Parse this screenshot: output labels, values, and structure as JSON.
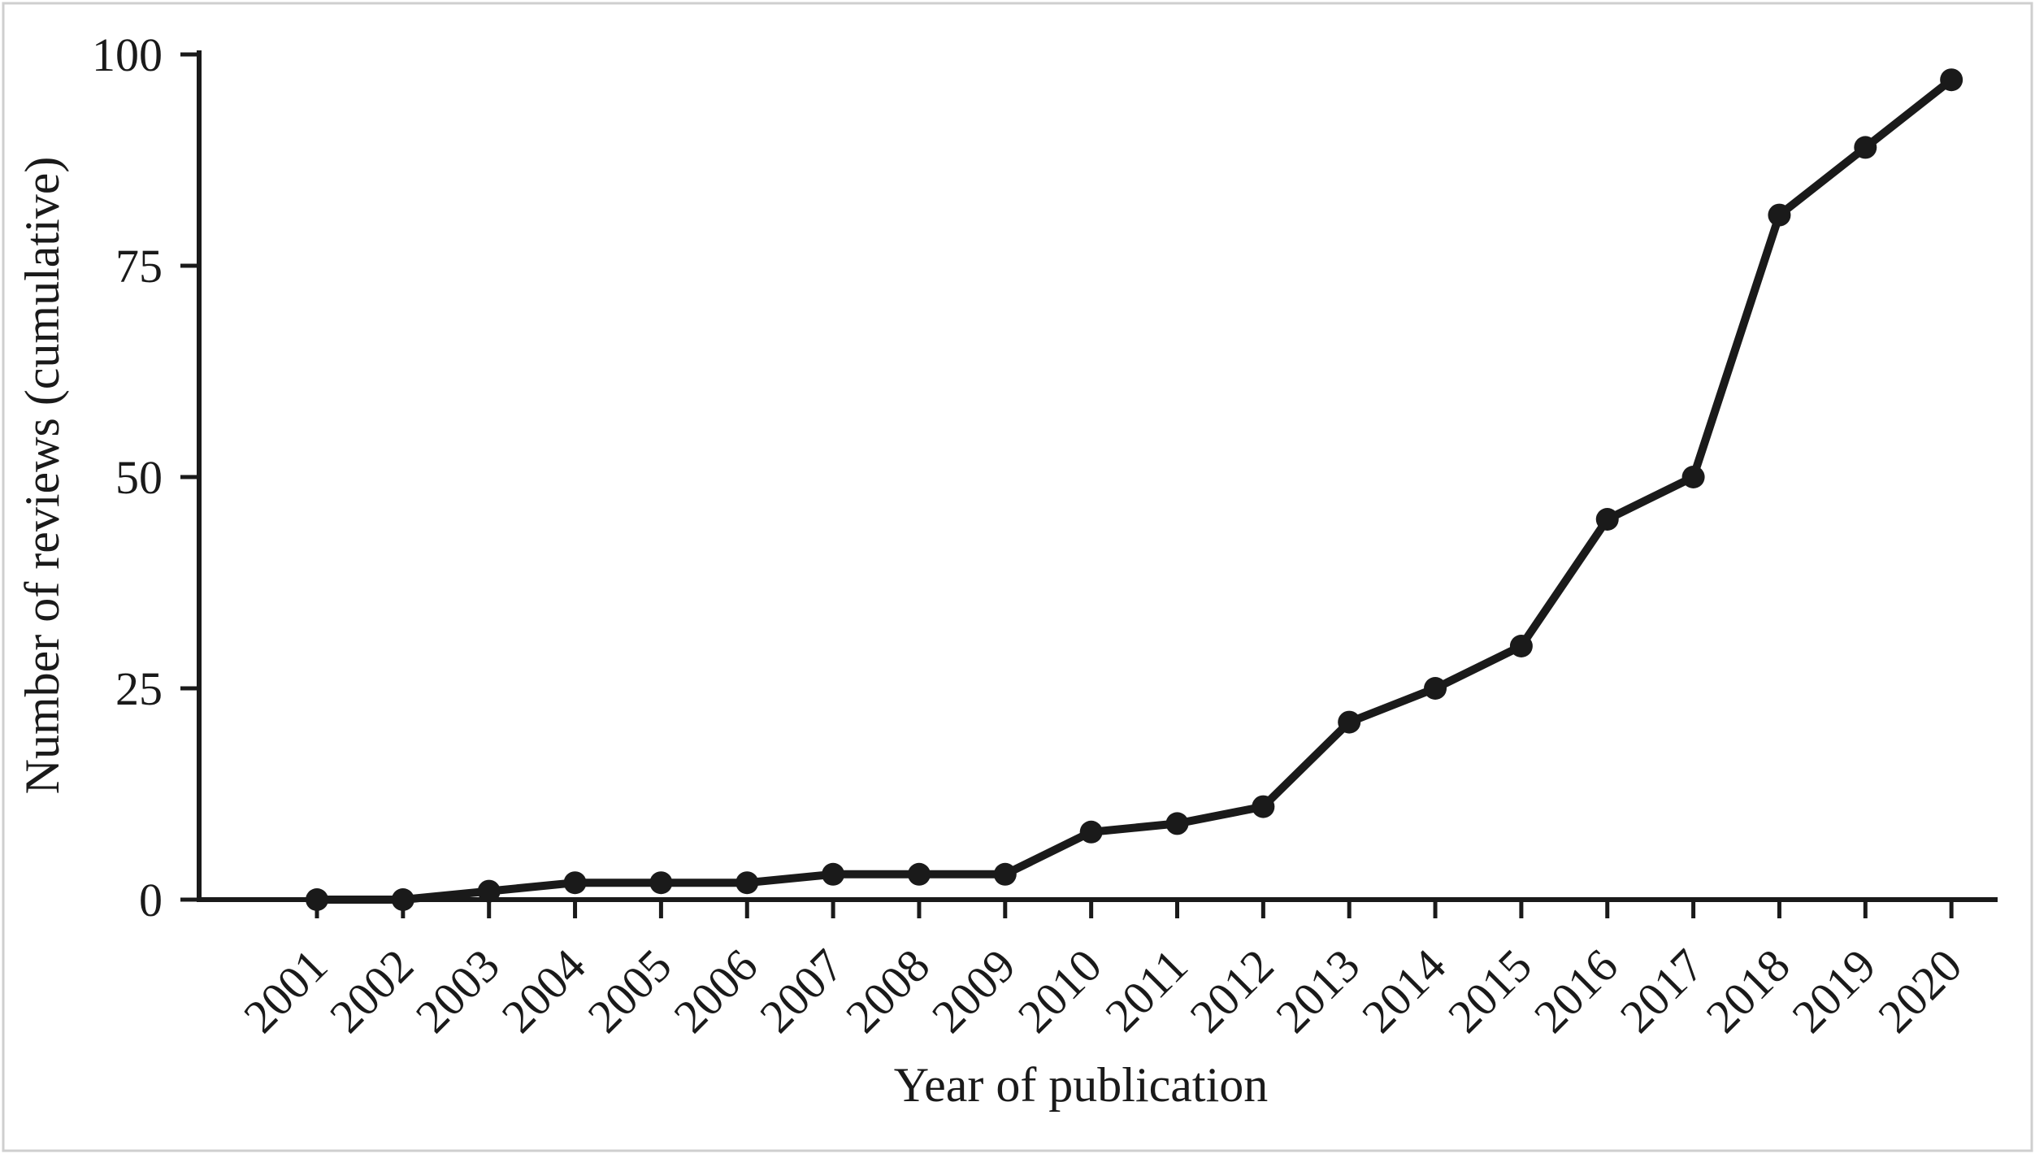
{
  "figure": {
    "background": "#ffffff",
    "frame_border_color": "#cfcfcf"
  },
  "chart_data": {
    "type": "line",
    "title": "",
    "xlabel": "Year of publication",
    "ylabel": "Number of reviews (cumulative)",
    "x": [
      "2001",
      "2002",
      "2003",
      "2004",
      "2005",
      "2006",
      "2007",
      "2008",
      "2009",
      "2010",
      "2011",
      "2012",
      "2013",
      "2014",
      "2015",
      "2016",
      "2017",
      "2018",
      "2019",
      "2020"
    ],
    "series": [
      {
        "name": "Number of reviews (cumulative)",
        "values": [
          0,
          0,
          1,
          2,
          2,
          2,
          3,
          3,
          3,
          8,
          9,
          11,
          21,
          25,
          30,
          45,
          50,
          81,
          89,
          97
        ]
      }
    ],
    "ylim": [
      0,
      100
    ],
    "yticks": [
      0,
      25,
      50,
      75,
      100
    ],
    "grid": false,
    "legend_position": "none",
    "line_color": "#1a1a1a",
    "marker": "circle",
    "x_tick_rotation": 45
  }
}
